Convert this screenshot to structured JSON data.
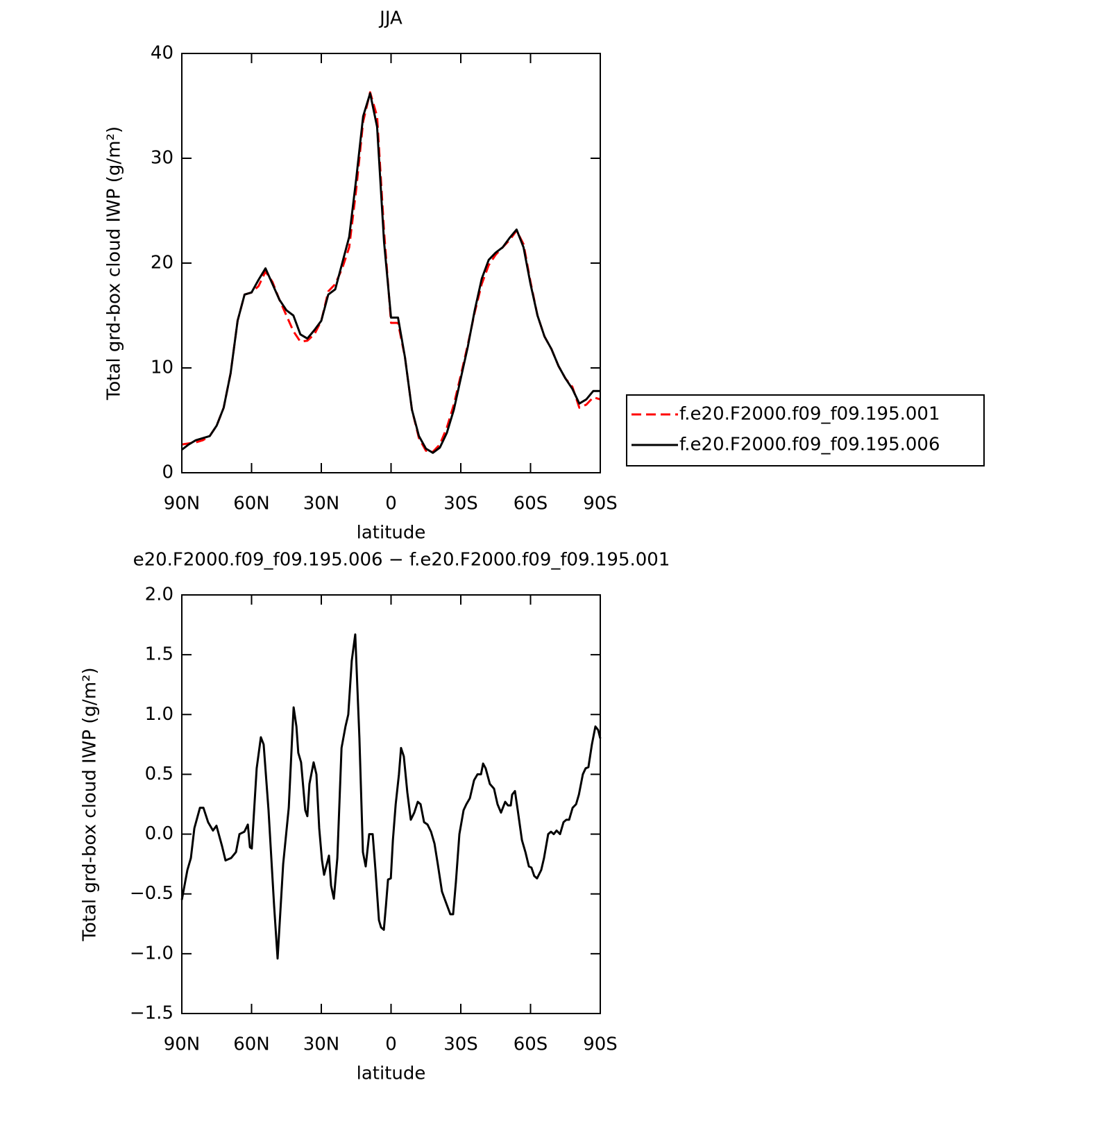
{
  "chart_data": [
    {
      "type": "line",
      "title": "JJA",
      "xlabel": "latitude",
      "ylabel": "Total grd-box cloud IWP (g/m²)",
      "xlim": [
        90,
        -90
      ],
      "ylim": [
        0,
        40
      ],
      "xticks": [
        {
          "value": 90,
          "label": "90N"
        },
        {
          "value": 60,
          "label": "60N"
        },
        {
          "value": 30,
          "label": "30N"
        },
        0,
        {
          "value": -30,
          "label": "30S"
        },
        {
          "value": -60,
          "label": "60S"
        },
        {
          "value": -90,
          "label": "90S"
        }
      ],
      "yticks": [
        0,
        10,
        20,
        30,
        40
      ],
      "legend": "right",
      "x": [
        90,
        87,
        84,
        81,
        78,
        75,
        72,
        69,
        66,
        63,
        60,
        57,
        54,
        51,
        48,
        45,
        42,
        39,
        36,
        33,
        30,
        27,
        24,
        21,
        18,
        15,
        12,
        9,
        6,
        3,
        0,
        -3,
        -6,
        -9,
        -12,
        -15,
        -18,
        -21,
        -24,
        -27,
        -30,
        -33,
        -36,
        -39,
        -42,
        -45,
        -48,
        -51,
        -54,
        -57,
        -60,
        -63,
        -66,
        -69,
        -72,
        -75,
        -78,
        -81,
        -84,
        -87,
        -90
      ],
      "series": [
        {
          "name": "f.e20.F2000.f09_f09.195.001",
          "color": "#ff0000",
          "linestyle": "dashed",
          "values": [
            2.7,
            2.8,
            2.9,
            3.1,
            3.5,
            4.5,
            6.2,
            9.5,
            14.5,
            17,
            17.2,
            17.8,
            19.2,
            18.2,
            16.5,
            15,
            13.5,
            12.5,
            12.6,
            13.2,
            14.5,
            17.3,
            18,
            19.5,
            21.5,
            27,
            33.5,
            36.3,
            34,
            23,
            14.3,
            14.3,
            11,
            6,
            3.3,
            2.1,
            2,
            2.7,
            4.3,
            6.5,
            9.3,
            12.2,
            15.3,
            18,
            19.8,
            20.8,
            21.5,
            22.2,
            23.1,
            21.8,
            18.2,
            15,
            13,
            11.8,
            10.2,
            9,
            8.2,
            6.2,
            6.5,
            7.2,
            7
          ]
        },
        {
          "name": "f.e20.F2000.f09_f09.195.006",
          "color": "#000000",
          "linestyle": "solid",
          "values": [
            2.2,
            2.7,
            3.1,
            3.3,
            3.5,
            4.5,
            6.2,
            9.5,
            14.5,
            17,
            17.2,
            18.4,
            19.5,
            18,
            16.5,
            15.5,
            15,
            13.2,
            12.8,
            13.6,
            14.5,
            17,
            17.5,
            20,
            22.5,
            28,
            34,
            36.2,
            33,
            22,
            14.8,
            14.8,
            11,
            6,
            3.5,
            2.3,
            1.9,
            2.4,
            3.8,
            6,
            9,
            12,
            15.5,
            18.5,
            20.3,
            21,
            21.5,
            22.4,
            23.2,
            21.5,
            18,
            15,
            13,
            11.8,
            10.2,
            9,
            8,
            6.6,
            7,
            7.8,
            7.8
          ]
        }
      ]
    },
    {
      "type": "line",
      "title": "e20.F2000.f09_f09.195.006 − f.e20.F2000.f09_f09.195.001",
      "xlabel": "latitude",
      "ylabel": "Total grd-box cloud IWP (g/m²)",
      "xlim": [
        90,
        -90
      ],
      "ylim": [
        -1.5,
        2.0
      ],
      "xticks": [
        {
          "value": 90,
          "label": "90N"
        },
        {
          "value": 60,
          "label": "60N"
        },
        {
          "value": 30,
          "label": "30N"
        },
        0,
        {
          "value": -30,
          "label": "30S"
        },
        {
          "value": -60,
          "label": "60S"
        },
        {
          "value": -90,
          "label": "90S"
        }
      ],
      "yticks": [
        {
          "value": -1.5,
          "label": "−1.5"
        },
        {
          "value": -1,
          "label": "−1.0"
        },
        {
          "value": -0.5,
          "label": "−0.5"
        },
        {
          "value": 0,
          "label": "0.0"
        },
        0.5,
        {
          "value": 1,
          "label": "1.0"
        },
        1.5,
        {
          "value": 2,
          "label": "2.0"
        }
      ],
      "x": [
        90,
        87.6,
        86.1,
        84.6,
        82.2,
        80.7,
        78.7,
        76.6,
        75.1,
        72.7,
        71.2,
        68.8,
        66.7,
        65.2,
        63.1,
        61.6,
        60.7,
        59.9,
        57.8,
        56,
        54.8,
        52.7,
        50.3,
        48.8,
        46.4,
        44,
        42.5,
        41.9,
        40.7,
        39.9,
        38.7,
        36.9,
        36,
        35.1,
        33.3,
        32.1,
        30.9,
        29.7,
        28.8,
        26.7,
        25.8,
        24.6,
        23.1,
        21.3,
        19.6,
        18.4,
        16.9,
        15.4,
        13.6,
        12.1,
        10.9,
        9.4,
        7.9,
        6.7,
        5.2,
        4.3,
        3.1,
        2.2,
        1.3,
        0.1,
        -0.8,
        -2,
        -3.4,
        -4.3,
        -5.5,
        -7,
        -8.5,
        -10,
        -11.5,
        -12.7,
        -14.2,
        -15.7,
        -17.2,
        -18.7,
        -20.1,
        -21.9,
        -23.4,
        -25.5,
        -26.7,
        -27.9,
        -29.4,
        -31.2,
        -32.4,
        -33.9,
        -35.7,
        -37.2,
        -38.7,
        -39.6,
        -40.7,
        -42.5,
        -44.3,
        -45.8,
        -47.3,
        -49.1,
        -50.3,
        -51.5,
        -52.1,
        -53.3,
        -54.5,
        -56.3,
        -57.8,
        -59.3,
        -60.4,
        -61.6,
        -62.8,
        -64.6,
        -65.8,
        -67.6,
        -68.8,
        -70,
        -71.2,
        -72.7,
        -74.2,
        -75.4,
        -76.6,
        -78.1,
        -79.6,
        -80.8,
        -82.5,
        -83.7,
        -84.9,
        -86.4,
        -87.9,
        -89.1,
        -90
      ],
      "series": [
        {
          "color": "#000000",
          "linestyle": "solid",
          "values": [
            -0.55,
            -0.3,
            -0.2,
            0.05,
            0.22,
            0.22,
            0.1,
            0.03,
            0.07,
            -0.1,
            -0.22,
            -0.2,
            -0.15,
            0,
            0.02,
            0.08,
            -0.11,
            -0.12,
            0.55,
            0.81,
            0.75,
            0.2,
            -0.6,
            -1.04,
            -0.25,
            0.22,
            0.83,
            1.06,
            0.9,
            0.68,
            0.6,
            0.2,
            0.15,
            0.42,
            0.6,
            0.5,
            0.05,
            -0.22,
            -0.34,
            -0.18,
            -0.43,
            -0.54,
            -0.2,
            0.72,
            0.9,
            1,
            1.45,
            1.67,
            0.8,
            -0.15,
            -0.27,
            0,
            0,
            -0.3,
            -0.72,
            -0.78,
            -0.8,
            -0.6,
            -0.38,
            -0.37,
            -0.05,
            0.25,
            0.5,
            0.72,
            0.65,
            0.35,
            0.12,
            0.18,
            0.27,
            0.25,
            0.1,
            0.08,
            0.02,
            -0.08,
            -0.25,
            -0.48,
            -0.56,
            -0.67,
            -0.67,
            -0.4,
            0,
            0.2,
            0.25,
            0.3,
            0.45,
            0.5,
            0.5,
            0.59,
            0.55,
            0.42,
            0.38,
            0.25,
            0.18,
            0.27,
            0.24,
            0.24,
            0.33,
            0.36,
            0.2,
            -0.05,
            -0.15,
            -0.27,
            -0.28,
            -0.35,
            -0.37,
            -0.3,
            -0.2,
            0,
            0.02,
            0,
            0.03,
            0,
            0.1,
            0.12,
            0.12,
            0.22,
            0.25,
            0.33,
            0.5,
            0.55,
            0.56,
            0.75,
            0.9,
            0.87,
            0.8
          ]
        }
      ]
    }
  ]
}
